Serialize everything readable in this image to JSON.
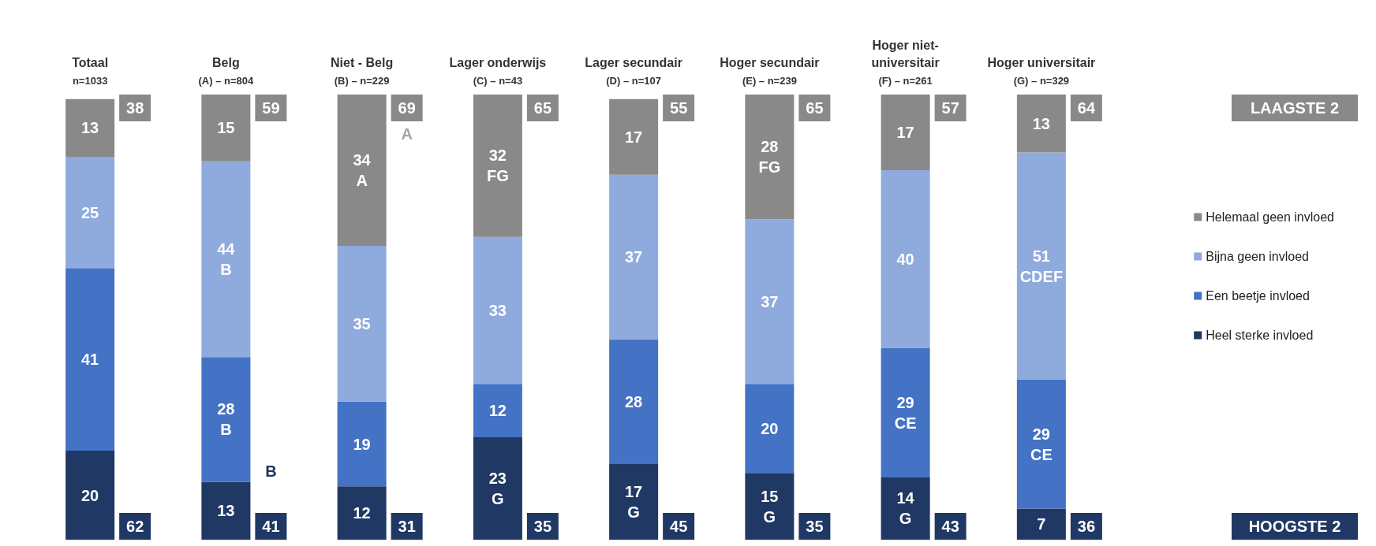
{
  "chart_data": {
    "type": "bar",
    "stacked": true,
    "tick_labels": "x",
    "legend": "right",
    "categories": [
      "Totaal\nn=1033",
      "Belg\n(A) – n=804",
      "Niet - Belg\n(B) – n=229",
      "Lager onderwijs\n(C) – n=43",
      "Lager secundair\n(D) – n=107",
      "Hoger secundair\n(E) – n=239",
      "Hoger niet-universitair\n(F) – n=261",
      "Hoger universitair\n(G) – n=329"
    ],
    "series": [
      {
        "name": "Heel sterke invloed",
        "color": "#1f3864",
        "values": [
          20,
          13,
          12,
          23,
          17,
          15,
          14,
          7
        ],
        "value_labels": [
          "20",
          "13",
          "12",
          "23\nG",
          "17\nG",
          "15\nG",
          "14\nG",
          "7"
        ]
      },
      {
        "name": "Een beetje invloed",
        "color": "#4472c4",
        "values": [
          41,
          28,
          19,
          12,
          28,
          20,
          29,
          29
        ],
        "value_labels": [
          "41",
          "28\nB",
          "19",
          "12",
          "28",
          "20",
          "29\nCE",
          "29\nCE"
        ]
      },
      {
        "name": "Bijna geen invloed",
        "color": "#8faadc",
        "values": [
          25,
          44,
          35,
          33,
          37,
          37,
          40,
          51
        ],
        "value_labels": [
          "25",
          "44\nB",
          "35",
          "33",
          "37",
          "37",
          "40",
          "51\nCDEF"
        ]
      },
      {
        "name": "Helemaal geen invloed",
        "color": "#898989",
        "values": [
          13,
          15,
          34,
          32,
          17,
          28,
          17,
          13
        ],
        "value_labels": [
          "13",
          "15",
          "34\nA",
          "32\nFG",
          "17",
          "28\nFG",
          "17",
          "13"
        ]
      }
    ],
    "annotations": [
      "LAAGSTE 2",
      "HOOGSTE 2",
      "38",
      "59",
      "69",
      "65",
      "55",
      "65",
      "57",
      "64",
      "62",
      "41",
      "31",
      "35",
      "45",
      "35",
      "43",
      "36",
      "A",
      {
        "text": "B",
        "x": "Belg\n(A) – n=804",
        "y": 13
      }
    ]
  }
}
